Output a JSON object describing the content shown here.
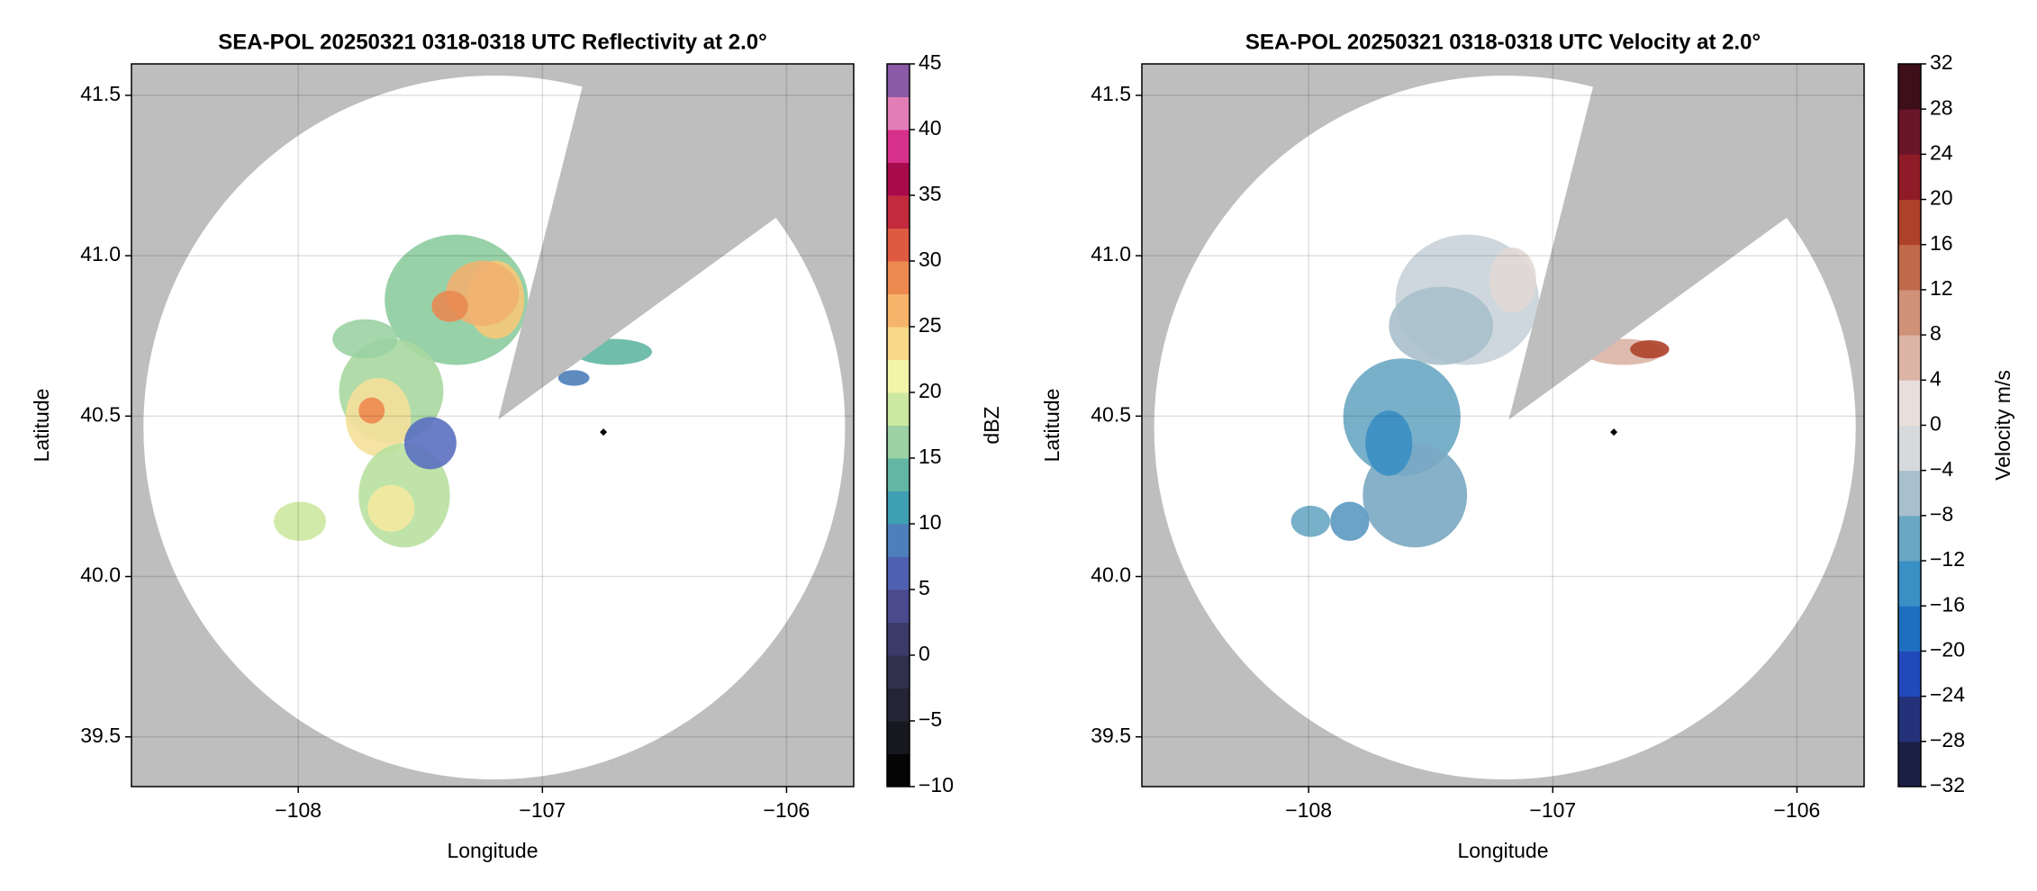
{
  "chart_data": [
    {
      "type": "radar-ppi",
      "title": "SEA-POL 20250321 0318-0318 UTC Reflectivity at 2.0°",
      "x_label": "Longitude",
      "y_label": "Latitude",
      "xlim": [
        -108.683,
        -105.725
      ],
      "ylim": [
        39.345,
        41.598
      ],
      "xticks": [
        {
          "value": -108,
          "label": "−108"
        },
        {
          "value": -107,
          "label": "−107"
        },
        {
          "value": -106,
          "label": "−106"
        }
      ],
      "yticks": [
        39.5,
        {
          "value": 40,
          "label": "40.0"
        },
        40.5,
        {
          "value": 41,
          "label": "41.0"
        },
        41.5
      ],
      "grid": true,
      "x": [
        -106.75
      ],
      "y": [
        40.45
      ],
      "marker_color": "#000000",
      "colorbar": {
        "label": "dBZ",
        "lim": [
          -10,
          45
        ],
        "ticks": [
          {
            "value": -10,
            "label": "−10"
          },
          {
            "value": -5,
            "label": "−5"
          },
          0,
          5,
          10,
          15,
          20,
          25,
          30,
          35,
          40,
          45
        ],
        "colors": [
          "#050505",
          "#17171f",
          "#242434",
          "#30304c",
          "#3c3a68",
          "#4a4a8e",
          "#5060b0",
          "#4d7fba",
          "#3f9fb4",
          "#62b6a3",
          "#9bd1a3",
          "#cde8a0",
          "#f3f4a8",
          "#f8d98a",
          "#f6b46a",
          "#ee8a50",
          "#de5a40",
          "#c42a3e",
          "#a80b4c",
          "#d6308a",
          "#e27db8",
          "#8a5aa6"
        ]
      }
    },
    {
      "type": "radar-ppi",
      "title": "SEA-POL 20250321 0318-0318 UTC Velocity at 2.0°",
      "x_label": "Longitude",
      "y_label": "Latitude",
      "xlim": [
        -108.683,
        -105.725
      ],
      "ylim": [
        39.345,
        41.598
      ],
      "xticks": [
        {
          "value": -108,
          "label": "−108"
        },
        {
          "value": -107,
          "label": "−107"
        },
        {
          "value": -106,
          "label": "−106"
        }
      ],
      "yticks": [
        39.5,
        {
          "value": 40,
          "label": "40.0"
        },
        40.5,
        {
          "value": 41,
          "label": "41.0"
        },
        41.5
      ],
      "grid": true,
      "x": [
        -106.75
      ],
      "y": [
        40.45
      ],
      "marker_color": "#000000",
      "colorbar": {
        "label": "Velocity m/s",
        "lim": [
          -32,
          32
        ],
        "ticks": [
          {
            "value": -32,
            "label": "−32"
          },
          {
            "value": -28,
            "label": "−28"
          },
          {
            "value": -24,
            "label": "−24"
          },
          {
            "value": -20,
            "label": "−20"
          },
          {
            "value": -16,
            "label": "−16"
          },
          {
            "value": -12,
            "label": "−12"
          },
          {
            "value": -8,
            "label": "−8"
          },
          {
            "value": -4,
            "label": "−4"
          },
          0,
          4,
          8,
          12,
          16,
          20,
          24,
          28,
          32
        ],
        "colors": [
          "#1c1f45",
          "#24327a",
          "#2249ba",
          "#1f6fc0",
          "#3a8fc4",
          "#6aa7c3",
          "#a8c0cb",
          "#d6dadd",
          "#e9dedb",
          "#dbb4a6",
          "#cf9178",
          "#c06a4c",
          "#ad4129",
          "#8e1b27",
          "#6a1528",
          "#3e0e19"
        ]
      }
    }
  ]
}
